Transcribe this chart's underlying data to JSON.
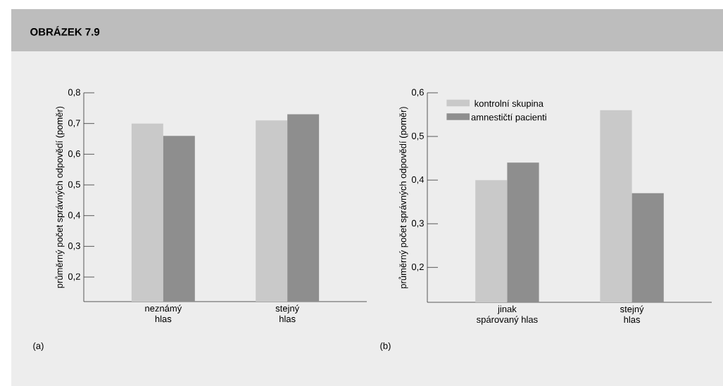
{
  "chart_data": [
    {
      "type": "bar",
      "title": "OBRÁZEK 7.9",
      "ylabel": "průměrný počet správných odpovědí (poměr)",
      "categories": [
        "neznámý\nhlas",
        "stejný\nhlas"
      ],
      "series": [
        {
          "color": "#c9c9c9",
          "values": [
            0.7,
            0.71
          ]
        },
        {
          "color": "#8e8e8e",
          "values": [
            0.66,
            0.73
          ]
        }
      ],
      "ylim": [
        0.12,
        0.8
      ],
      "yticks": [
        {
          "value": 0.2,
          "label": "0,2"
        },
        {
          "value": 0.3,
          "label": "0,3"
        },
        {
          "value": 0.4,
          "label": "0,4"
        },
        {
          "value": 0.5,
          "label": "0,5"
        },
        {
          "value": 0.6,
          "label": "0,6"
        },
        {
          "value": 0.7,
          "label": "0,7"
        },
        {
          "value": 0.8,
          "label": "0,8"
        }
      ],
      "annotations": [
        "(a)"
      ]
    },
    {
      "type": "bar",
      "ylabel": "průměrný počet správných odpovědí (poměr)",
      "categories": [
        "jinak\nspárovaný hlas",
        "stejný\nhlas"
      ],
      "series": [
        {
          "name": "kontrolní skupina",
          "color": "#c9c9c9",
          "values": [
            0.4,
            0.56
          ]
        },
        {
          "name": "amnestičtí pacienti",
          "color": "#8e8e8e",
          "values": [
            0.44,
            0.37
          ]
        }
      ],
      "ylim": [
        0.12,
        0.6
      ],
      "yticks": [
        {
          "value": 0.2,
          "label": "0,2"
        },
        {
          "value": 0.3,
          "label": "0,3"
        },
        {
          "value": 0.4,
          "label": "0,4"
        },
        {
          "value": 0.5,
          "label": "0,5"
        },
        {
          "value": 0.6,
          "label": "0,6"
        }
      ],
      "legend": "top left",
      "annotations": [
        "(b)"
      ]
    }
  ]
}
